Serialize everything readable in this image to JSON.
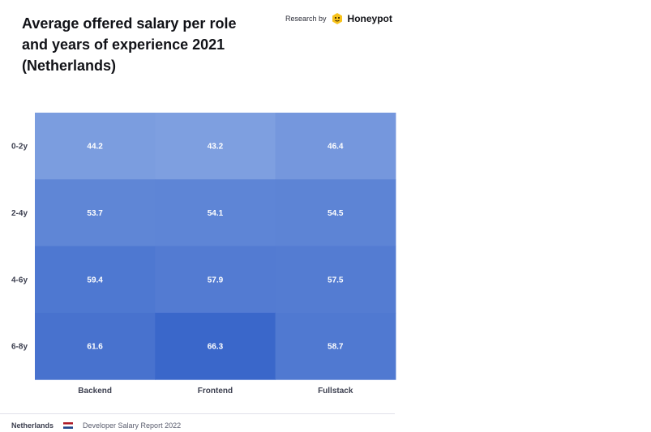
{
  "header": {
    "title": "Average offered salary per role\nand years of experience 2021\n(Netherlands)",
    "brand_prefix": "Research by",
    "brand_name": "Honeypot"
  },
  "chart_data": {
    "type": "heatmap",
    "title": "Average offered salary per role and years of experience 2021 (Netherlands)",
    "x_categories": [
      "Backend",
      "Frontend",
      "Fullstack"
    ],
    "y_categories": [
      "0-2y",
      "2-4y",
      "4-6y",
      "6-8y"
    ],
    "values": [
      [
        44.2,
        43.2,
        46.4
      ],
      [
        53.7,
        54.1,
        54.5
      ],
      [
        59.4,
        57.9,
        57.5
      ],
      [
        61.6,
        66.3,
        58.7
      ]
    ],
    "value_range": [
      43.2,
      66.3
    ],
    "color_low": "#7e9fe0",
    "color_high": "#3a67ca",
    "label_color": "#ffffff",
    "axis_label_color": "#3d4050",
    "xlabel": "",
    "ylabel": ""
  },
  "footer": {
    "country": "Netherlands",
    "report": "Developer Salary Report 2022",
    "flag_colors": [
      "#ae1c28",
      "#ffffff",
      "#21468b"
    ]
  }
}
